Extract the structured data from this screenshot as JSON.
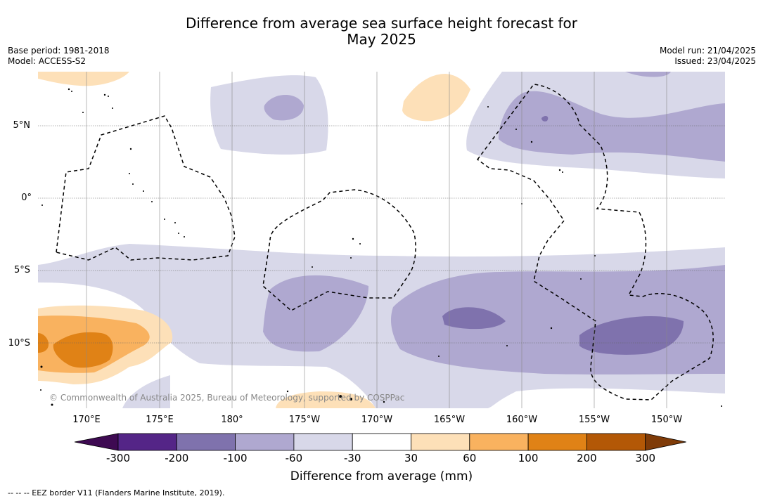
{
  "header": {
    "title_line1": "Difference from average sea surface height forecast for",
    "title_line2": "May 2025",
    "base_period": "Base period: 1981-2018",
    "model": "Model: ACCESS-S2",
    "model_run": "Model run: 21/04/2025",
    "issued": "Issued: 23/04/2025"
  },
  "map": {
    "lat_labels": [
      "5°N",
      "0°",
      "5°S",
      "10°S"
    ],
    "lon_labels": [
      "170°E",
      "175°E",
      "180°",
      "175°W",
      "170°W",
      "165°W",
      "160°W",
      "155°W",
      "150°W"
    ],
    "credit": "© Commonwealth of Australia 2025, Bureau of Meteorology, supported by COSPPac",
    "colors": {
      "minus_30_60": "#d8d8e9",
      "minus_60_100": "#afa8d0",
      "minus_100_200": "#7f72ad",
      "plus_30_60": "#fde0b8",
      "plus_60_100": "#f9b25f",
      "plus_100_200": "#e08216",
      "eez_border": "#000000"
    }
  },
  "colorbar": {
    "ticks": [
      "-300",
      "-200",
      "-100",
      "-60",
      "-30",
      "30",
      "60",
      "100",
      "200",
      "300"
    ],
    "colors": [
      "#3e0a52",
      "#542587",
      "#7f72ad",
      "#afa8d0",
      "#d8d8e9",
      "#ffffff",
      "#fde0b8",
      "#f9b25f",
      "#e08216",
      "#b35806",
      "#7f3b08"
    ],
    "label": "Difference from average (mm)"
  },
  "footer": {
    "legend": "--  --  -- EEZ border V11 (Flanders Marine Institute, 2019)."
  }
}
